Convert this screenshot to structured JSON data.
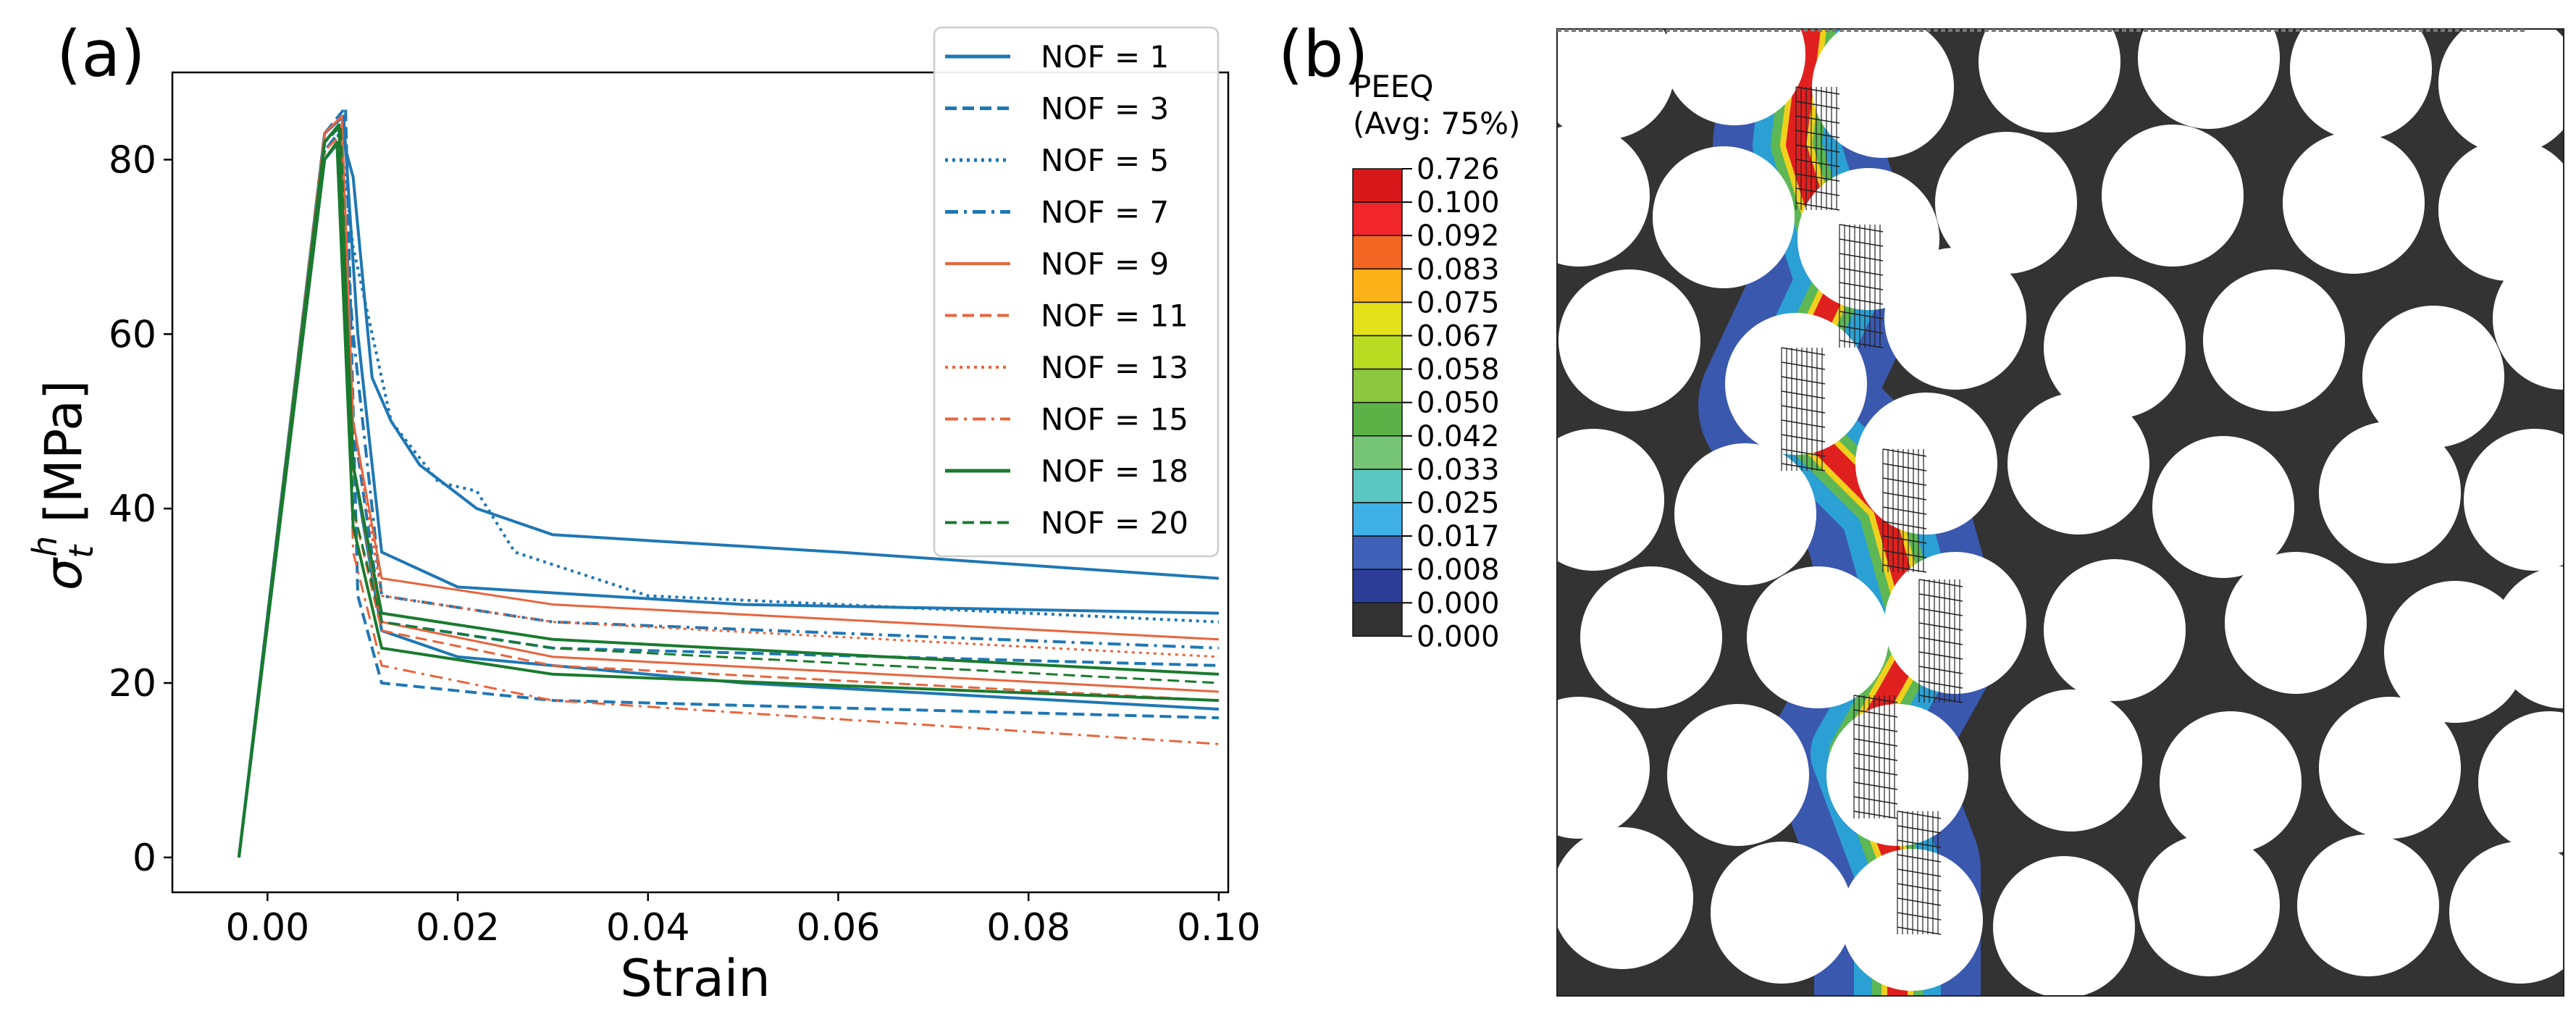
{
  "panel_a_label": "(a)",
  "panel_b_label": "(b)",
  "chart_data": {
    "type": "line",
    "title": "",
    "xlabel": "Strain",
    "ylabel_symbol": "σ",
    "ylabel_sup": "h",
    "ylabel_sub": "t",
    "ylabel_unit": "[MPa]",
    "xlim": [
      -0.01,
      0.101
    ],
    "ylim": [
      -4,
      90
    ],
    "xticks": [
      0.0,
      0.02,
      0.04,
      0.06,
      0.08,
      0.1
    ],
    "xtick_labels": [
      "0.00",
      "0.02",
      "0.04",
      "0.06",
      "0.08",
      "0.10"
    ],
    "yticks": [
      0,
      20,
      40,
      60,
      80
    ],
    "ytick_labels": [
      "0",
      "20",
      "40",
      "60",
      "80"
    ],
    "legend_position": "top-right",
    "series": [
      {
        "name": "NOF = 1",
        "color": "#1f77b4",
        "dash": "solid",
        "width": 4,
        "curves": [
          {
            "x": [
              -0.003,
              0.006,
              0.0075,
              0.009,
              0.011,
              0.013,
              0.016,
              0.022,
              0.03,
              0.06,
              0.1
            ],
            "y": [
              0,
              82,
              84,
              78,
              55,
              50,
              45,
              40,
              37,
              35,
              32
            ]
          },
          {
            "x": [
              -0.003,
              0.006,
              0.008,
              0.0095,
              0.012,
              0.02,
              0.05,
              0.1
            ],
            "y": [
              0,
              83,
              85,
              60,
              35,
              31,
              29,
              28
            ]
          },
          {
            "x": [
              -0.003,
              0.006,
              0.0075,
              0.009,
              0.012,
              0.02,
              0.05,
              0.1
            ],
            "y": [
              0,
              80,
              82,
              45,
              26,
              23,
              20,
              17
            ]
          }
        ]
      },
      {
        "name": "NOF = 3",
        "color": "#1f77b4",
        "dash": "dashed",
        "width": 4,
        "curves": [
          {
            "x": [
              -0.003,
              0.006,
              0.0078,
              0.009,
              0.012,
              0.03,
              0.1
            ],
            "y": [
              0,
              82,
              84,
              50,
              27,
              24,
              22
            ]
          },
          {
            "x": [
              -0.003,
              0.006,
              0.0082,
              0.0095,
              0.012,
              0.03,
              0.1
            ],
            "y": [
              0,
              83,
              86,
              30,
              20,
              18,
              16
            ]
          }
        ]
      },
      {
        "name": "NOF = 5",
        "color": "#1f77b4",
        "dash": "dotted",
        "width": 4,
        "curves": [
          {
            "x": [
              -0.003,
              0.006,
              0.0076,
              0.009,
              0.013,
              0.018,
              0.022,
              0.026,
              0.04,
              0.1
            ],
            "y": [
              0,
              81,
              83,
              70,
              50,
              43,
              42,
              35,
              30,
              27
            ]
          }
        ]
      },
      {
        "name": "NOF = 7",
        "color": "#1f77b4",
        "dash": "dashdot",
        "width": 4,
        "curves": [
          {
            "x": [
              -0.003,
              0.006,
              0.0074,
              0.009,
              0.012,
              0.03,
              0.1
            ],
            "y": [
              0,
              81,
              83,
              60,
              30,
              27,
              24
            ]
          }
        ]
      },
      {
        "name": "NOF = 9",
        "color": "#e8643c",
        "dash": "solid",
        "width": 3,
        "curves": [
          {
            "x": [
              -0.003,
              0.006,
              0.0078,
              0.009,
              0.012,
              0.03,
              0.1
            ],
            "y": [
              0,
              83,
              85,
              50,
              32,
              29,
              25
            ]
          },
          {
            "x": [
              -0.003,
              0.006,
              0.0076,
              0.009,
              0.012,
              0.03,
              0.1
            ],
            "y": [
              0,
              82,
              84,
              45,
              27,
              23,
              19
            ]
          }
        ]
      },
      {
        "name": "NOF = 11",
        "color": "#e8643c",
        "dash": "dashed",
        "width": 3,
        "curves": [
          {
            "x": [
              -0.003,
              0.006,
              0.0074,
              0.009,
              0.012,
              0.03,
              0.1
            ],
            "y": [
              0,
              80,
              82,
              40,
              26,
              22,
              18
            ]
          }
        ]
      },
      {
        "name": "NOF = 13",
        "color": "#e8643c",
        "dash": "dotted",
        "width": 3,
        "curves": [
          {
            "x": [
              -0.003,
              0.006,
              0.0076,
              0.009,
              0.012,
              0.03,
              0.1
            ],
            "y": [
              0,
              82,
              84,
              50,
              30,
              27,
              23
            ]
          }
        ]
      },
      {
        "name": "NOF = 15",
        "color": "#e8643c",
        "dash": "dashdot",
        "width": 3,
        "curves": [
          {
            "x": [
              -0.003,
              0.006,
              0.0078,
              0.009,
              0.012,
              0.03,
              0.1
            ],
            "y": [
              0,
              81,
              83,
              35,
              22,
              18,
              13
            ]
          }
        ]
      },
      {
        "name": "NOF = 18",
        "color": "#1a7a2e",
        "dash": "solid",
        "width": 4,
        "curves": [
          {
            "x": [
              -0.003,
              0.006,
              0.0075,
              0.009,
              0.012,
              0.03,
              0.1
            ],
            "y": [
              0,
              82,
              84,
              45,
              28,
              25,
              21
            ]
          },
          {
            "x": [
              -0.003,
              0.006,
              0.0073,
              0.009,
              0.012,
              0.03,
              0.1
            ],
            "y": [
              0,
              80,
              82,
              38,
              24,
              21,
              18
            ]
          }
        ]
      },
      {
        "name": "NOF = 20",
        "color": "#1a7a2e",
        "dash": "dashed",
        "width": 3,
        "curves": [
          {
            "x": [
              -0.003,
              0.006,
              0.0077,
              0.009,
              0.012,
              0.03,
              0.1
            ],
            "y": [
              0,
              82,
              84,
              40,
              27,
              24,
              20
            ]
          }
        ]
      }
    ]
  },
  "colorbar": {
    "title_line1": "PEEQ",
    "title_line2": "(Avg: 75%)",
    "labels": [
      "0.726",
      "0.100",
      "0.092",
      "0.083",
      "0.075",
      "0.067",
      "0.058",
      "0.050",
      "0.042",
      "0.033",
      "0.025",
      "0.017",
      "0.008",
      "0.000",
      "0.000"
    ],
    "colors": [
      "#d7191c",
      "#f0262a",
      "#f26522",
      "#fbb117",
      "#e4e11a",
      "#b9dc22",
      "#8dc63f",
      "#5cb247",
      "#76c576",
      "#5bc7c2",
      "#3fb0e6",
      "#3f62b8",
      "#2c3e98",
      "#333333"
    ]
  },
  "micro_colors": {
    "matrix": "#333333",
    "fiber": "#ffffff",
    "band_low": "#3b5bb8",
    "band_mid": "#2aa8d8",
    "band_high": "#e0201f",
    "band_green": "#63b946",
    "band_yellow": "#f7d21a"
  }
}
